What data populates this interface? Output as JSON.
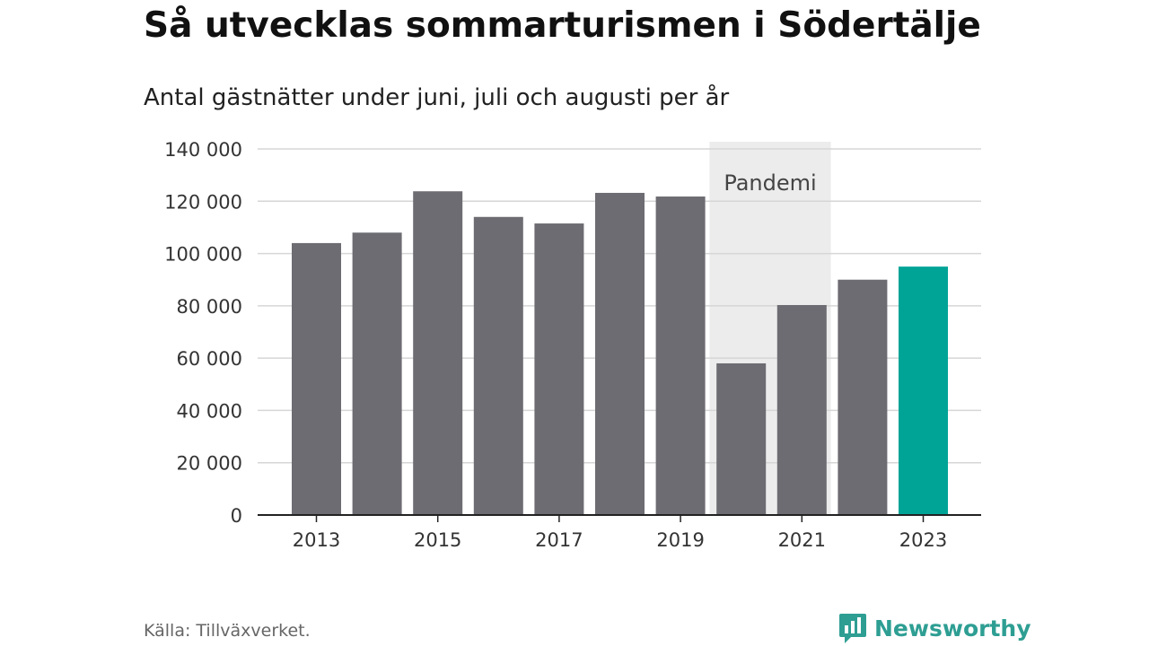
{
  "title": "Så utvecklas sommarturismen i Södertälje",
  "subtitle": "Antal gästnätter under juni, juli och augusti per år",
  "source": "Källa: Tillväxverket.",
  "logo_text": "Newsworthy",
  "colors": {
    "bar": "#6d6c72",
    "highlight": "#00a497",
    "band": "#ececec",
    "grid": "#d6d6d6",
    "axis": "#222222"
  },
  "chart_data": {
    "type": "bar",
    "title": "Så utvecklas sommarturismen i Södertälje",
    "subtitle": "Antal gästnätter under juni, juli och augusti per år",
    "categories": [
      2013,
      2014,
      2015,
      2016,
      2017,
      2018,
      2019,
      2020,
      2021,
      2022,
      2023
    ],
    "values": [
      104000,
      108000,
      123800,
      114000,
      111500,
      123200,
      121800,
      58000,
      80300,
      90000,
      95000
    ],
    "highlight_category": 2023,
    "x_tick_labels": [
      "2013",
      "2015",
      "2017",
      "2019",
      "2021",
      "2023"
    ],
    "x_tick_values": [
      2013,
      2015,
      2017,
      2019,
      2021,
      2023
    ],
    "y_tick_labels": [
      "0",
      "20 000",
      "40 000",
      "60 000",
      "80 000",
      "100 000",
      "120 000",
      "140 000"
    ],
    "y_tick_values": [
      0,
      20000,
      40000,
      60000,
      80000,
      100000,
      120000,
      140000
    ],
    "ylim": [
      0,
      140000
    ],
    "grid": true,
    "annotation": {
      "label": "Pandemi",
      "start": 2020,
      "end": 2021
    }
  }
}
